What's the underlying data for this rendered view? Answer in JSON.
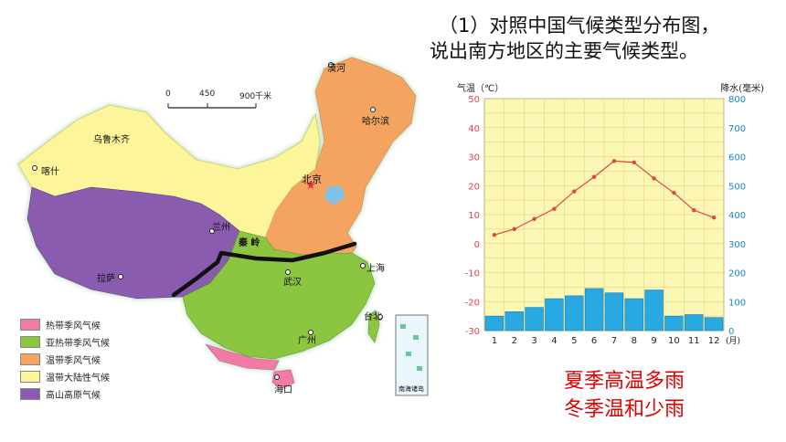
{
  "question": {
    "line1": "（1）对照中国气候类型分布图，",
    "line2": "说出南方地区的主要气候类型。"
  },
  "answer": {
    "line1": "夏季高温多雨",
    "line2": "冬季温和少雨"
  },
  "map": {
    "scale": {
      "zero": "0",
      "mid": "450",
      "max": "900千米"
    },
    "cities": {
      "mohe": "漠河",
      "harbin": "哈尔滨",
      "urumqi": "乌鲁木齐",
      "kashgar": "喀什",
      "beijing": "北京",
      "lanzhou": "兰州",
      "qinling": "秦 岭",
      "lhasa": "拉萨",
      "wuhan": "武汉",
      "shanghai": "上海",
      "taipei": "台北",
      "guangzhou": "广州",
      "haikou": "海口",
      "south_sea": "南海诸岛"
    },
    "colors": {
      "tropical_monsoon": "#f27aa6",
      "subtropical_monsoon": "#8cc63f",
      "temperate_monsoon": "#f4a460",
      "temperate_continental": "#fcf59a",
      "plateau": "#8a5bb0"
    },
    "legend": [
      {
        "label": "热带季风气候",
        "color": "#f27aa6"
      },
      {
        "label": "亚热带季风气候",
        "color": "#8cc63f"
      },
      {
        "label": "温带季风气候",
        "color": "#f4a460"
      },
      {
        "label": "温带大陆性气候",
        "color": "#fcf59a"
      },
      {
        "label": "高山高原气候",
        "color": "#8a5bb0"
      }
    ]
  },
  "chart_data": {
    "type": "bar",
    "left_axis_label": "气温（℃）",
    "right_axis_label": "降水(毫米)",
    "x_unit": "(月)",
    "categories": [
      "1",
      "2",
      "3",
      "4",
      "5",
      "6",
      "7",
      "8",
      "9",
      "10",
      "11",
      "12"
    ],
    "y_left_range": [
      -30,
      50
    ],
    "y_left_ticks": [
      50,
      40,
      30,
      20,
      10,
      0,
      -10,
      -20,
      -30
    ],
    "y_right_range": [
      0,
      800
    ],
    "y_right_ticks": [
      800,
      700,
      600,
      500,
      400,
      300,
      200,
      100,
      0
    ],
    "temperature": [
      3,
      5,
      8.5,
      12,
      18,
      23,
      28.5,
      28,
      22.5,
      17.5,
      11.5,
      9
    ],
    "precipitation": [
      50,
      65,
      80,
      110,
      120,
      145,
      130,
      110,
      140,
      50,
      55,
      45
    ],
    "colors": {
      "background": "#fcf7b4",
      "bars": "#29a9e1",
      "line": "#e2443c",
      "left_axis": "#e2443c",
      "right_axis": "#1a86c9"
    },
    "grid": true
  }
}
